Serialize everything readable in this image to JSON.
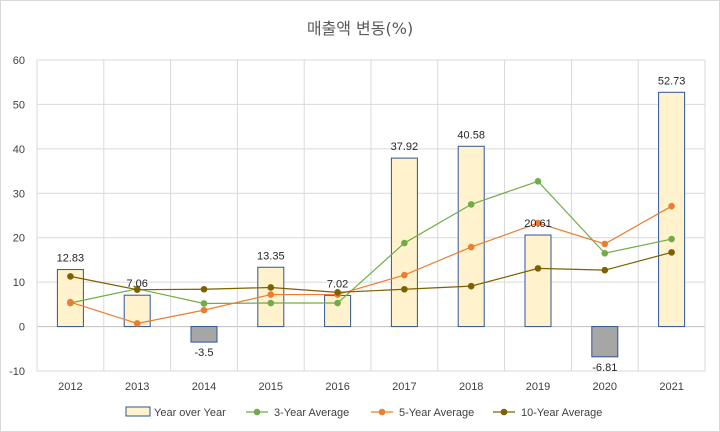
{
  "chart_data": {
    "type": "bar",
    "title": "매출액 변동(%)",
    "categories": [
      "2012",
      "2013",
      "2014",
      "2015",
      "2016",
      "2017",
      "2018",
      "2019",
      "2020",
      "2021"
    ],
    "ylim": [
      -10,
      60
    ],
    "yticks": [
      -10,
      0,
      10,
      20,
      30,
      40,
      50,
      60
    ],
    "grid": true,
    "legend_position": "bottom",
    "series": [
      {
        "name": "Year over Year",
        "kind": "bar",
        "values": [
          12.83,
          7.06,
          -3.5,
          13.35,
          7.02,
          37.92,
          40.58,
          20.61,
          -6.81,
          52.73
        ],
        "labels": [
          "12.83",
          "7.06",
          "-3.5",
          "13.35",
          "7.02",
          "37.92",
          "40.58",
          "20.61",
          "-6.81",
          "52.73"
        ],
        "fill": "#fff2cc",
        "negative_fill": "#a6a6a6",
        "stroke": "#2f5597"
      },
      {
        "name": "3-Year Average",
        "kind": "line",
        "values": [
          5.3,
          8.5,
          5.2,
          5.3,
          5.3,
          18.8,
          27.5,
          32.7,
          16.5,
          19.7
        ],
        "color": "#70ad47"
      },
      {
        "name": "5-Year Average",
        "kind": "line",
        "values": [
          5.5,
          0.7,
          3.7,
          7.2,
          7.2,
          11.6,
          17.9,
          23.3,
          18.6,
          27.1
        ],
        "color": "#ed7d31"
      },
      {
        "name": "10-Year Average",
        "kind": "line",
        "values": [
          11.3,
          8.3,
          8.4,
          8.8,
          7.7,
          8.4,
          9.1,
          13.1,
          12.7,
          16.7
        ],
        "color": "#7f6000"
      }
    ]
  }
}
